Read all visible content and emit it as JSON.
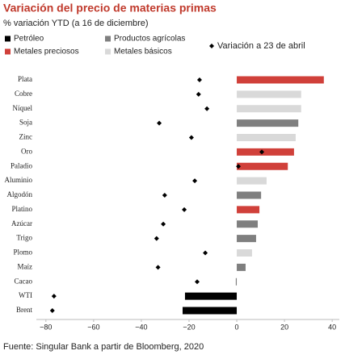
{
  "chart_data": {
    "type": "bar",
    "orientation": "horizontal",
    "title": "Variación del precio de materias primas",
    "subtitle": "% variación YTD (a 16 de diciembre)",
    "source": "Fuente: Singular Bank a partir de Bloomberg, 2020",
    "categories": [
      "Plata",
      "Cobre",
      "Níquel",
      "Soja",
      "Zinc",
      "Oro",
      "Paladio",
      "Aluminio",
      "Algodón",
      "Platino",
      "Azúcar",
      "Trigo",
      "Plomo",
      "Maíz",
      "Cacao",
      "WTI",
      "Brent"
    ],
    "series": [
      {
        "name": "Petróleo",
        "color": "#000000",
        "values": [
          null,
          null,
          null,
          null,
          null,
          null,
          null,
          null,
          null,
          null,
          null,
          null,
          null,
          null,
          null,
          -21.7,
          -22.7
        ]
      },
      {
        "name": "Productos agrícolas",
        "color": "#7f7f7f",
        "values": [
          null,
          null,
          null,
          25.8,
          null,
          null,
          null,
          null,
          10.2,
          null,
          8.8,
          8.1,
          null,
          3.7,
          -0.4,
          null,
          null
        ]
      },
      {
        "name": "Metales preciosos",
        "color": "#d0403a",
        "values": [
          36.5,
          null,
          null,
          null,
          null,
          24,
          21.4,
          null,
          null,
          9.5,
          null,
          null,
          null,
          null,
          null,
          null,
          null
        ]
      },
      {
        "name": "Metales básicos",
        "color": "#d9d9d9",
        "values": [
          null,
          27,
          27,
          null,
          24.7,
          null,
          null,
          12.5,
          null,
          null,
          null,
          null,
          6.4,
          null,
          null,
          null,
          null
        ]
      },
      {
        "name": "Variación a 23 de abril",
        "color": "#000000",
        "marker": "diamond",
        "values": [
          -15.6,
          -16,
          -12.5,
          -32.5,
          -19,
          10.5,
          0.7,
          -17.6,
          -30.2,
          -22,
          -30.8,
          -33.6,
          -13.2,
          -33,
          -16.6,
          -76.6,
          -77.3
        ]
      }
    ],
    "xlim": [
      -84,
      43
    ],
    "xticks": [
      {
        "value": -80,
        "label": "−80"
      },
      {
        "value": -60,
        "label": "−60"
      },
      {
        "value": -40,
        "label": "−40"
      },
      {
        "value": -20,
        "label": "−20"
      },
      0,
      20,
      40
    ],
    "grid": false
  }
}
